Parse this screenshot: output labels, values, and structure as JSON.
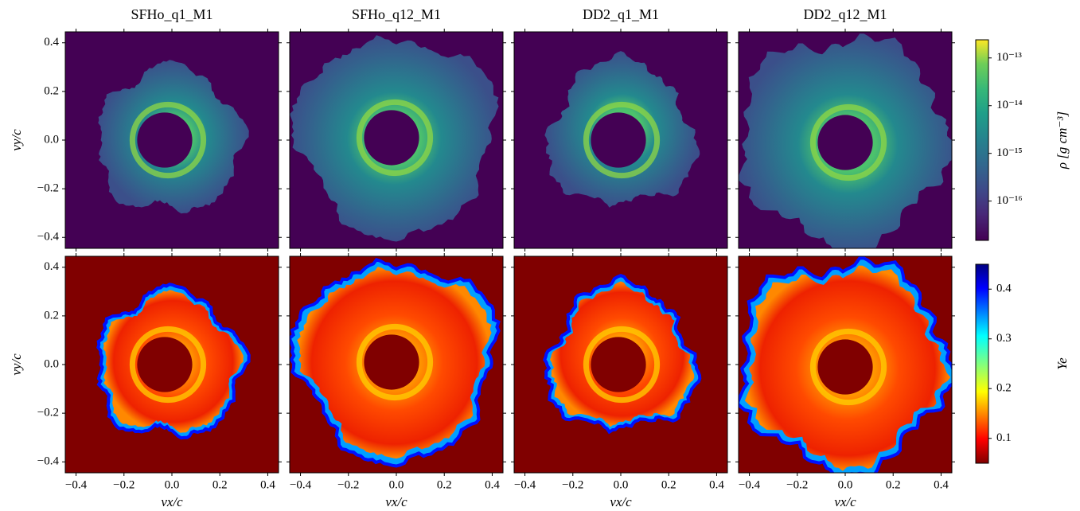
{
  "chart_data": {
    "type": "heatmap",
    "columns": [
      "SFHo_q1_M1",
      "SFHo_q12_M1",
      "DD2_q1_M1",
      "DD2_q12_M1"
    ],
    "xlabel": "vx/c",
    "ylabel": "vy/c",
    "xlim": [
      -0.445,
      0.445
    ],
    "ylim": [
      -0.445,
      0.445
    ],
    "xticks": [
      {
        "value": -0.4,
        "label": "−0.4"
      },
      {
        "value": -0.2,
        "label": "−0.2"
      },
      {
        "value": 0,
        "label": "0.0"
      },
      0.2,
      0.4
    ],
    "yticks": [
      {
        "value": -0.4,
        "label": "−0.4"
      },
      {
        "value": -0.2,
        "label": "−0.2"
      },
      {
        "value": 0,
        "label": "0.0"
      },
      0.2,
      0.4
    ],
    "colorbars": [
      {
        "label": "ρ [g cm⁻³]",
        "log": true,
        "clim": [
          1.5e-17,
          2.4e-13
        ],
        "colormap": "viridis",
        "ticks": [
          {
            "value": 1e-13,
            "label": "10⁻¹³"
          },
          {
            "value": 1e-14,
            "label": "10⁻¹⁴"
          },
          {
            "value": 1e-15,
            "label": "10⁻¹⁵"
          },
          {
            "value": 1e-16,
            "label": "10⁻¹⁶"
          }
        ]
      },
      {
        "label": "Ye",
        "log": false,
        "clim": [
          0.05,
          0.45
        ],
        "colormap": "jet_r",
        "ticks": [
          0.1,
          0.2,
          0.3,
          0.4
        ]
      }
    ]
  }
}
